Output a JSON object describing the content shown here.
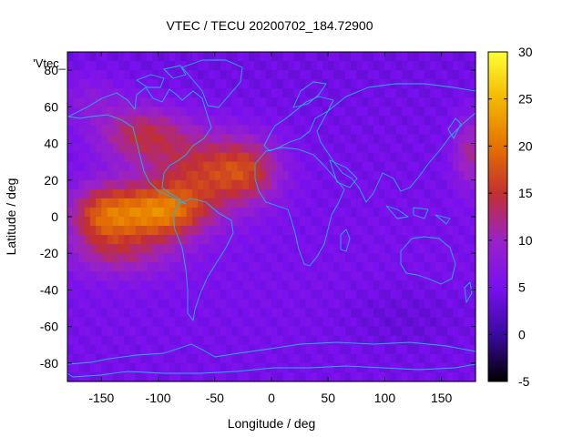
{
  "chart_data": {
    "type": "heatmap",
    "title": "VTEC / TECU 20200702_184.72900",
    "xlabel": "Longitude / deg",
    "ylabel": "Latitude / deg",
    "series_label": "'Vtec_",
    "xlim": [
      -180,
      180
    ],
    "ylim": [
      -90,
      90
    ],
    "x_ticks": [
      -150,
      -100,
      -50,
      0,
      50,
      100,
      150
    ],
    "y_ticks": [
      -80,
      -60,
      -40,
      -20,
      0,
      20,
      40,
      60,
      80
    ],
    "x_tick_labels": [
      "-150",
      "-100",
      "-50",
      "0",
      "50",
      "100",
      "150"
    ],
    "y_tick_labels": [
      "-80",
      "-60",
      "-40",
      "-20",
      "0",
      "20",
      "40",
      "60",
      "80"
    ],
    "colorbar": {
      "range": [
        -5,
        30
      ],
      "ticks": [
        30,
        25,
        20,
        15,
        10,
        5,
        0,
        -5
      ],
      "tick_labels": [
        "30",
        "25",
        "20",
        "15",
        "10",
        "5",
        "0",
        "-5"
      ],
      "colors": [
        "#000000",
        "#3a0aa0",
        "#7a10f0",
        "#9a22c8",
        "#c33030",
        "#e57200",
        "#f3b800",
        "#ffff33"
      ]
    },
    "grid_step_deg": 5,
    "coastline_color": "#1fb5e8"
  }
}
